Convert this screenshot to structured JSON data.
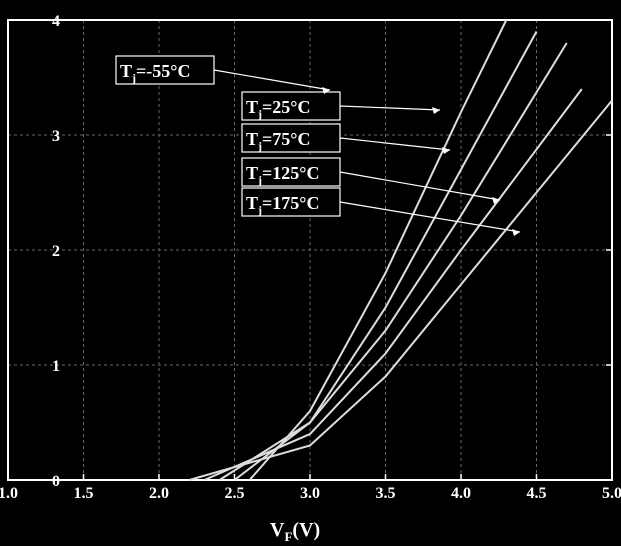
{
  "chart_data": {
    "type": "line",
    "xlabel": "V",
    "xlabel_sub": "F",
    "xlabel_unit": "(V)",
    "ylabel": "",
    "xlim": [
      1.0,
      5.0
    ],
    "ylim": [
      0,
      4
    ],
    "x_ticks": [
      "1.0",
      "1.5",
      "2.0",
      "2.5",
      "3.0",
      "3.5",
      "4.0",
      "4.5",
      "5.0"
    ],
    "y_ticks": [
      "0",
      "1",
      "2",
      "3",
      "4"
    ],
    "grid": true,
    "legend": [
      {
        "prefix": "T",
        "sub": "j",
        "value": "=-55°C"
      },
      {
        "prefix": "T",
        "sub": "j",
        "value": "=25°C"
      },
      {
        "prefix": "T",
        "sub": "j",
        "value": "=75°C"
      },
      {
        "prefix": "T",
        "sub": "j",
        "value": "=125°C"
      },
      {
        "prefix": "T",
        "sub": "j",
        "value": "=175°C"
      }
    ],
    "series": [
      {
        "name": "Tj=-55°C",
        "x": [
          2.6,
          3.0,
          3.5,
          4.0,
          4.3
        ],
        "y": [
          0.0,
          0.6,
          1.8,
          3.2,
          4.0
        ]
      },
      {
        "name": "Tj=25°C",
        "x": [
          2.5,
          3.0,
          3.5,
          4.0,
          4.5
        ],
        "y": [
          0.0,
          0.5,
          1.5,
          2.7,
          3.9
        ]
      },
      {
        "name": "Tj=75°C",
        "x": [
          2.4,
          3.0,
          3.5,
          4.0,
          4.7
        ],
        "y": [
          0.0,
          0.5,
          1.3,
          2.3,
          3.8
        ]
      },
      {
        "name": "Tj=125°C",
        "x": [
          2.3,
          3.0,
          3.5,
          4.0,
          4.8
        ],
        "y": [
          0.0,
          0.4,
          1.1,
          2.0,
          3.4
        ]
      },
      {
        "name": "Tj=175°C",
        "x": [
          2.2,
          3.0,
          3.5,
          4.0,
          5.0
        ],
        "y": [
          0.0,
          0.3,
          0.9,
          1.7,
          3.3
        ]
      }
    ]
  }
}
